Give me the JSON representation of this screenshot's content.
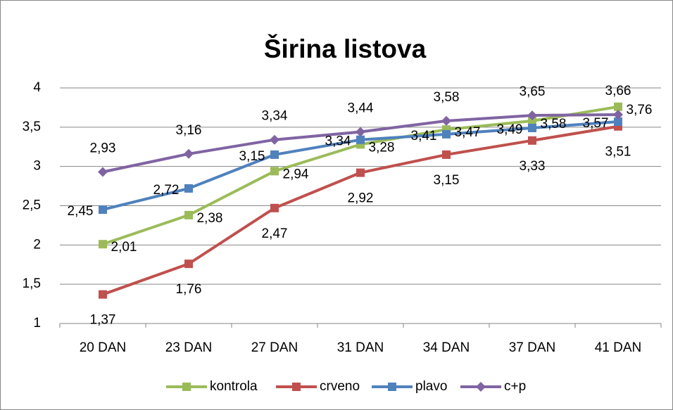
{
  "chart_data": {
    "type": "line",
    "title": "Širina listova",
    "categories": [
      "20 DAN",
      "23 DAN",
      "27 DAN",
      "31 DAN",
      "34 DAN",
      "37 DAN",
      "41 DAN"
    ],
    "series": [
      {
        "name": "kontrola",
        "color": "#9bbb59",
        "marker": "square",
        "label_position": "right",
        "values": [
          2.01,
          2.38,
          2.94,
          3.28,
          3.47,
          3.58,
          3.76
        ],
        "value_labels": [
          "2,01",
          "2,38",
          "2,94",
          "3,28",
          "3,47",
          "3,58",
          "3,76"
        ]
      },
      {
        "name": "crveno",
        "color": "#c0504d",
        "marker": "square",
        "label_position": "below",
        "values": [
          1.37,
          1.76,
          2.47,
          2.92,
          3.15,
          3.33,
          3.51
        ],
        "value_labels": [
          "1,37",
          "1,76",
          "2,47",
          "2,92",
          "3,15",
          "3,33",
          "3,51"
        ]
      },
      {
        "name": "plavo",
        "color": "#4f81bd",
        "marker": "square",
        "label_position": "left",
        "values": [
          2.45,
          2.72,
          3.15,
          3.34,
          3.41,
          3.49,
          3.57
        ],
        "value_labels": [
          "2,45",
          "2,72",
          "3,15",
          "3,34",
          "3,41",
          "3,49",
          "3,57"
        ]
      },
      {
        "name": "c+p",
        "color": "#8064a2",
        "marker": "diamond",
        "label_position": "above",
        "values": [
          2.93,
          3.16,
          3.34,
          3.44,
          3.58,
          3.65,
          3.66
        ],
        "value_labels": [
          "2,93",
          "3,16",
          "3,34",
          "3,44",
          "3,58",
          "3,65",
          "3,66"
        ]
      }
    ],
    "ylim": [
      1,
      4
    ],
    "yticks": [
      1,
      {
        "value": 1.5,
        "label": "1,5"
      },
      2,
      {
        "value": 2.5,
        "label": "2,5"
      },
      3,
      {
        "value": 3.5,
        "label": "3,5"
      },
      4
    ],
    "grid": true,
    "legend": "bottom"
  }
}
